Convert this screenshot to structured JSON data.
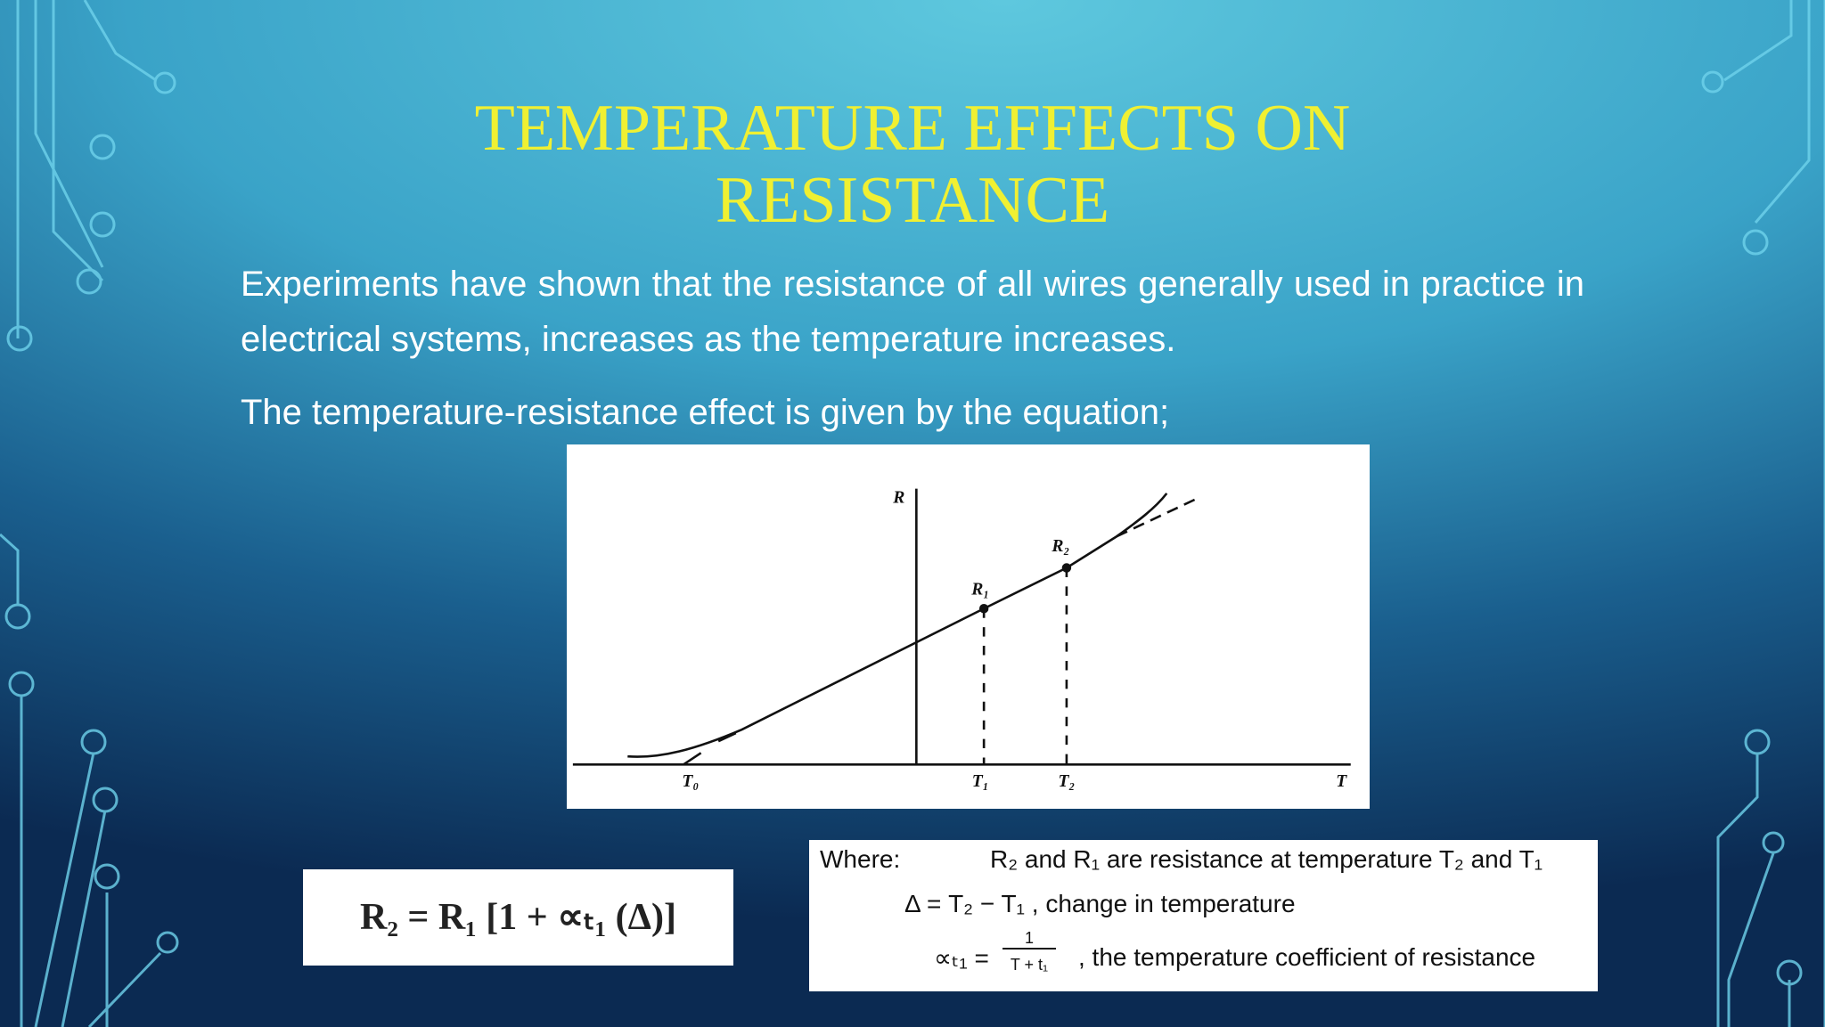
{
  "header": {
    "title_lines": [
      "TEMPERATURE EFFECTS ON",
      "RESISTANCE"
    ]
  },
  "body": {
    "paragraphs": [
      "Experiments have shown that the resistance of all wires generally used in practice in electrical systems, increases as the temperature increases.",
      "The temperature-resistance effect is given by the equation;"
    ]
  },
  "figure": {
    "labels": {
      "r_axis": "R",
      "r2": "R₂",
      "r1": "R₁",
      "t0": "T₀",
      "t1": "T₁",
      "t2": "T₂",
      "t_axis": "T"
    }
  },
  "equation": "R₂ = R₁ [1 + ∝ₜ₁ (Δ)]",
  "where_box": {
    "heading": "Where:",
    "line1": "R₂ and R₁ are resistance at temperature T₂ and T₁",
    "line2": "Δ = T₂ − T₁ , change in temperature",
    "line3_lhs": "∝ₜ₁ =",
    "line3_num": "1",
    "line3_den": "T + t₁",
    "line3_text": ", the temperature coefficient of resistance"
  }
}
